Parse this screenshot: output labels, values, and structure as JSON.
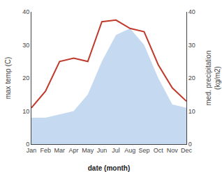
{
  "chart_data": {
    "type": "line",
    "categories": [
      "Jan",
      "Feb",
      "Mar",
      "Apr",
      "May",
      "Jun",
      "Jul",
      "Aug",
      "Sep",
      "Oct",
      "Nov",
      "Dec"
    ],
    "series": [
      {
        "type": "area",
        "color": "#c5d9f1",
        "values": [
          8,
          8,
          9,
          10,
          15,
          25,
          33,
          35,
          30,
          20,
          12,
          11
        ]
      },
      {
        "type": "line",
        "color": "#c0392b",
        "values": [
          11,
          16,
          25,
          26,
          25,
          37,
          37.5,
          35,
          34,
          24,
          17,
          13
        ]
      }
    ],
    "xlabel": "date (month)",
    "ylabel": "max temp (C)",
    "y2label": "med. precipitation\n(kg/m2)",
    "ylim": [
      0,
      40
    ],
    "yticks": [
      0,
      10,
      20,
      30,
      40
    ],
    "y2lim": [
      0,
      40
    ],
    "y2ticks": [
      0,
      10,
      20,
      30,
      40
    ],
    "grid": false
  }
}
